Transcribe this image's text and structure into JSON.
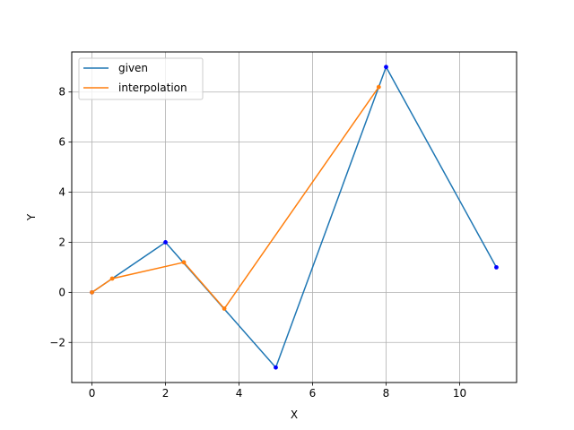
{
  "chart_data": {
    "type": "line",
    "xlabel": "X",
    "ylabel": "Y",
    "xlim": [
      -0.55,
      11.55
    ],
    "ylim": [
      -3.6,
      9.6
    ],
    "xticks": [
      0,
      2,
      4,
      6,
      8,
      10
    ],
    "yticks": [
      -2,
      0,
      2,
      4,
      6,
      8
    ],
    "xtick_labels": [
      "0",
      "2",
      "4",
      "6",
      "8",
      "10"
    ],
    "ytick_labels": [
      "−2",
      "0",
      "2",
      "4",
      "6",
      "8"
    ],
    "grid": true,
    "legend_position": "top-left",
    "series": [
      {
        "name": "given",
        "color": "#1f77b4",
        "marker_color": "#0000ff",
        "x": [
          0,
          2,
          5,
          8,
          11
        ],
        "y": [
          0,
          2,
          -3,
          9,
          1
        ]
      },
      {
        "name": "interpolation",
        "color": "#ff7f0e",
        "marker_color": "#ff7f0e",
        "x": [
          0,
          0.55,
          2.5,
          3.6,
          7.8
        ],
        "y": [
          0,
          0.55,
          1.2,
          -0.65,
          8.2
        ]
      }
    ]
  }
}
